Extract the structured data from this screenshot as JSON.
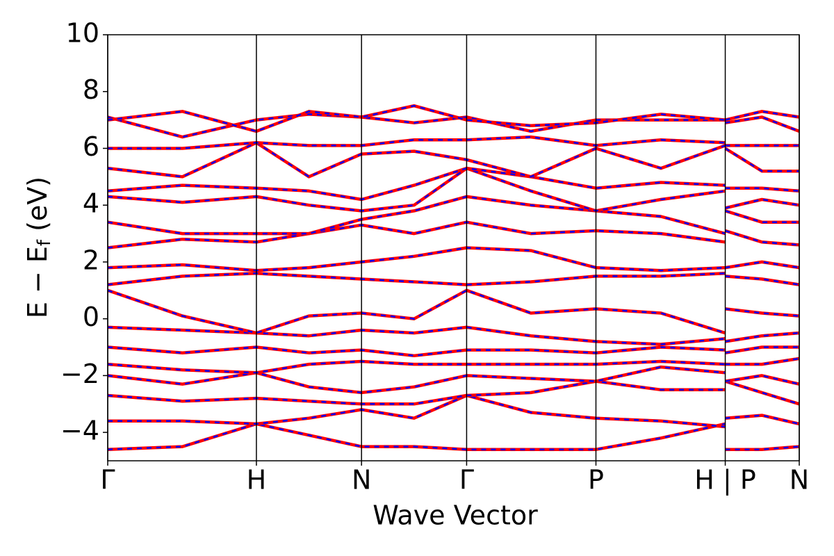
{
  "chart_data": {
    "type": "line",
    "xlabel": "Wave Vector",
    "ylabel": {
      "text": "E − E",
      "sub": "f",
      "after": " (eV)"
    },
    "x": [
      0,
      0.108,
      0.215,
      0.291,
      0.367,
      0.443,
      0.519,
      0.612,
      0.706,
      0.8,
      0.893,
      0.893,
      0.893,
      0.946,
      1.0
    ],
    "xlim": [
      0,
      1.0
    ],
    "xticks": [
      {
        "value": 0,
        "label": "Γ"
      },
      {
        "value": 0.215,
        "label": "H"
      },
      {
        "value": 0.367,
        "label": "N"
      },
      {
        "value": 0.519,
        "label": "Γ"
      },
      {
        "value": 0.706,
        "label": "P"
      },
      {
        "value": 0.893,
        "label": "H | P"
      },
      {
        "value": 1.0,
        "label": "N"
      }
    ],
    "ylim": [
      -5,
      10
    ],
    "yticks": [
      {
        "value": -4,
        "label": "−4"
      },
      {
        "value": -2,
        "label": "−2"
      },
      0,
      2,
      4,
      6,
      8,
      10
    ],
    "line_color": "#ff0000",
    "dash_color": "#0000ff",
    "grid": "x",
    "series": [
      {
        "values": [
          -4.6,
          -4.5,
          -3.7,
          -4.1,
          -4.5,
          -4.5,
          -4.6,
          -4.6,
          -4.6,
          -4.2,
          -3.7,
          null,
          -4.6,
          -4.6,
          -4.5
        ]
      },
      {
        "values": [
          -3.6,
          -3.6,
          -3.7,
          -3.5,
          -3.2,
          -3.5,
          -2.7,
          -3.3,
          -3.5,
          -3.6,
          -3.8,
          null,
          -3.5,
          -3.4,
          -3.7
        ]
      },
      {
        "values": [
          -2.7,
          -2.9,
          -2.8,
          -2.9,
          -3.0,
          -3.0,
          -2.7,
          -2.6,
          -2.2,
          -2.5,
          -2.5,
          null,
          -2.2,
          -2.6,
          -3.0
        ]
      },
      {
        "values": [
          -2.0,
          -2.3,
          -1.9,
          -2.4,
          -2.6,
          -2.4,
          -2.0,
          -2.1,
          -2.2,
          -1.7,
          -1.9,
          null,
          -2.2,
          -2.0,
          -2.3
        ]
      },
      {
        "values": [
          -1.6,
          -1.8,
          -1.9,
          -1.6,
          -1.5,
          -1.6,
          -1.6,
          -1.6,
          -1.6,
          -1.5,
          -1.6,
          null,
          -1.6,
          -1.6,
          -1.4
        ]
      },
      {
        "values": [
          -1.0,
          -1.2,
          -1.0,
          -1.2,
          -1.1,
          -1.3,
          -1.1,
          -1.1,
          -1.2,
          -1.0,
          -1.1,
          null,
          -1.2,
          -1.0,
          -1.0
        ]
      },
      {
        "values": [
          -0.3,
          -0.4,
          -0.5,
          -0.6,
          -0.4,
          -0.5,
          -0.3,
          -0.6,
          -0.8,
          -0.9,
          -0.7,
          null,
          -0.8,
          -0.6,
          -0.5
        ]
      },
      {
        "values": [
          1.0,
          0.1,
          -0.5,
          0.1,
          0.2,
          0.0,
          1.0,
          0.2,
          0.35,
          0.2,
          -0.5,
          null,
          0.35,
          0.2,
          0.1
        ]
      },
      {
        "values": [
          1.2,
          1.5,
          1.6,
          1.5,
          1.4,
          1.3,
          1.2,
          1.3,
          1.5,
          1.5,
          1.6,
          null,
          1.5,
          1.4,
          1.2
        ]
      },
      {
        "values": [
          1.8,
          1.9,
          1.7,
          1.8,
          2.0,
          2.2,
          2.5,
          2.4,
          1.8,
          1.7,
          1.8,
          null,
          1.8,
          2.0,
          1.8
        ]
      },
      {
        "values": [
          2.5,
          2.8,
          2.7,
          3.0,
          3.3,
          3.0,
          3.4,
          3.0,
          3.1,
          3.0,
          2.7,
          null,
          3.1,
          2.7,
          2.6
        ]
      },
      {
        "values": [
          3.4,
          3.0,
          3.0,
          3.0,
          3.5,
          3.8,
          4.3,
          4.0,
          3.8,
          3.6,
          3.0,
          null,
          3.8,
          3.4,
          3.4
        ]
      },
      {
        "values": [
          4.3,
          4.1,
          4.3,
          4.0,
          3.8,
          4.0,
          5.3,
          4.5,
          3.8,
          4.2,
          4.5,
          null,
          3.9,
          4.2,
          4.0
        ]
      },
      {
        "values": [
          4.5,
          4.7,
          4.6,
          4.5,
          4.2,
          4.7,
          5.3,
          5.0,
          4.6,
          4.8,
          4.7,
          null,
          4.6,
          4.6,
          4.5
        ]
      },
      {
        "values": [
          5.3,
          5.0,
          6.2,
          5.0,
          5.8,
          5.9,
          5.6,
          5.0,
          6.0,
          5.3,
          6.1,
          null,
          6.0,
          5.2,
          5.2
        ]
      },
      {
        "values": [
          6.0,
          6.0,
          6.2,
          6.1,
          6.1,
          6.3,
          6.3,
          6.4,
          6.1,
          6.3,
          6.2,
          null,
          6.1,
          6.1,
          6.1
        ]
      },
      {
        "values": [
          7.1,
          6.4,
          7.0,
          7.2,
          7.1,
          6.9,
          7.1,
          6.6,
          7.0,
          7.0,
          7.0,
          null,
          7.0,
          7.3,
          7.1
        ]
      },
      {
        "values": [
          7.0,
          7.3,
          6.6,
          7.3,
          7.1,
          7.5,
          7.0,
          6.8,
          6.9,
          7.2,
          7.0,
          null,
          6.9,
          7.1,
          6.6
        ]
      }
    ]
  }
}
